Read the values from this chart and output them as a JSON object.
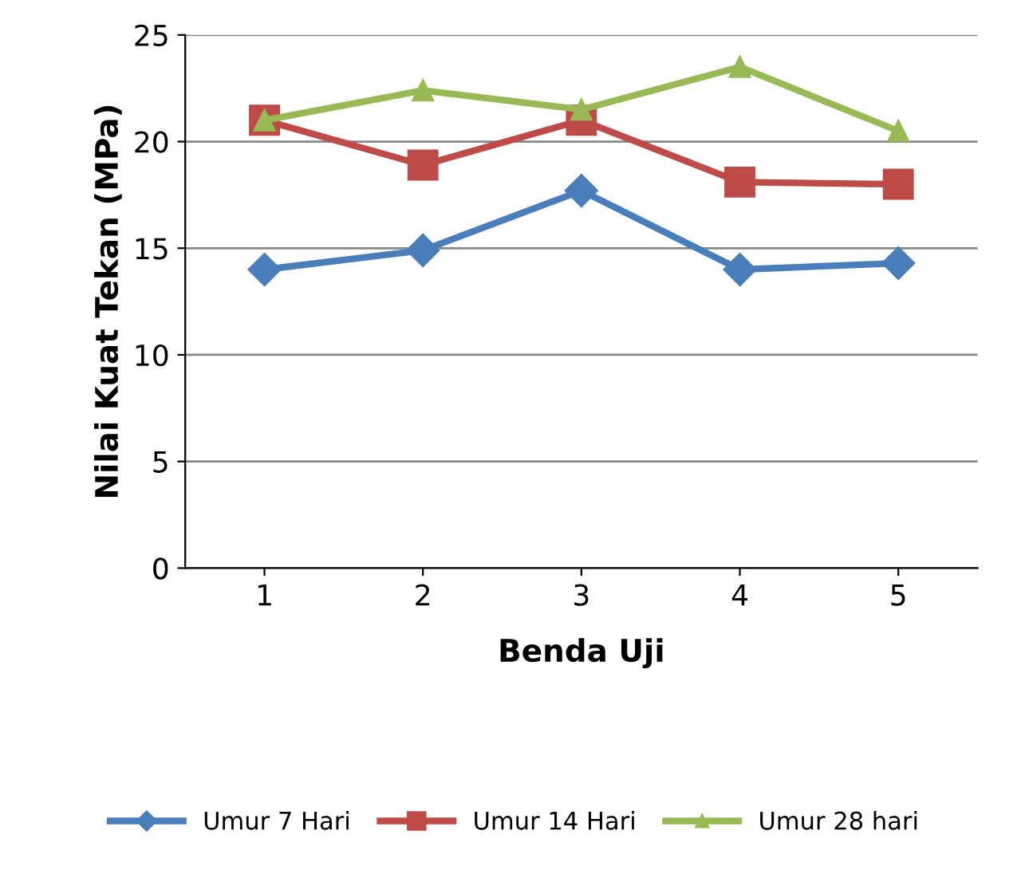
{
  "chart_data": {
    "type": "line",
    "xlabel": "Benda Uji",
    "ylabel": "Nilai Kuat Tekan (MPa)",
    "categories": [
      "1",
      "2",
      "3",
      "4",
      "5"
    ],
    "series": [
      {
        "name": "Umur 7 Hari",
        "color": "#4a7ebb",
        "marker": "diamond",
        "values": [
          14.0,
          14.9,
          17.7,
          14.0,
          14.3
        ]
      },
      {
        "name": "Umur 14 Hari",
        "color": "#be4b48",
        "marker": "square",
        "values": [
          21.0,
          18.9,
          21.0,
          18.1,
          18.0
        ]
      },
      {
        "name": "Umur 28 hari",
        "color": "#98b954",
        "marker": "triangle",
        "values": [
          21.0,
          22.4,
          21.5,
          23.5,
          20.5
        ]
      }
    ],
    "ylim": [
      0,
      25
    ],
    "yticks": [
      0,
      5,
      10,
      15,
      20,
      25
    ],
    "grid": "y",
    "legend": "bottom",
    "line_style": "solid"
  }
}
